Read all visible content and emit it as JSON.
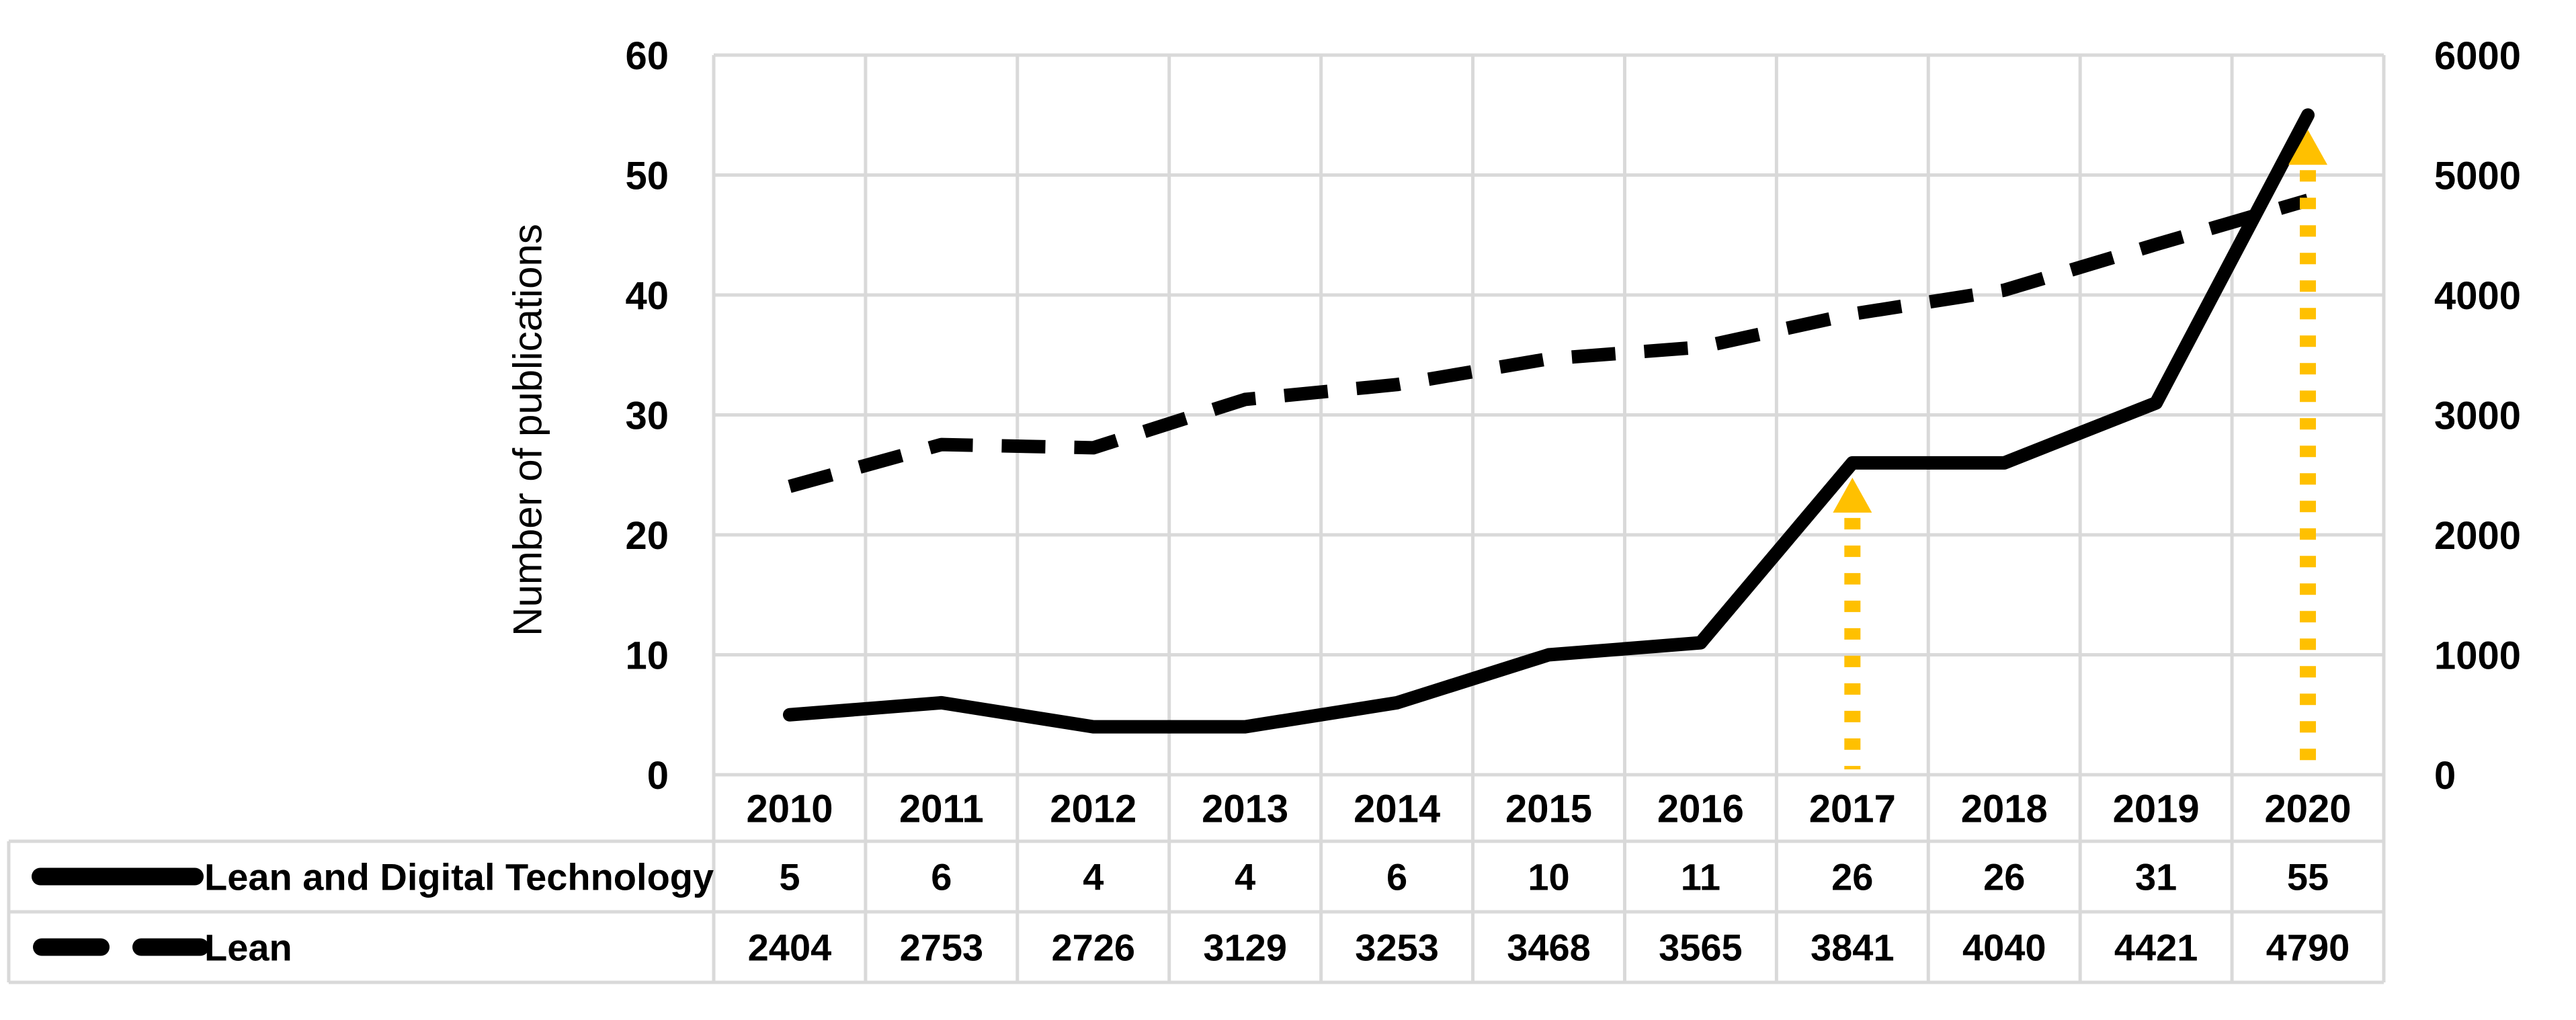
{
  "chart": {
    "y_axis_title": "Number of publications",
    "left_axis_ticks": [
      "0",
      "10",
      "20",
      "30",
      "40",
      "50",
      "60"
    ],
    "right_axis_ticks": [
      "0",
      "1000",
      "2000",
      "3000",
      "4000",
      "5000",
      "6000"
    ]
  },
  "chart_data": {
    "type": "line",
    "title": "",
    "xlabel": "",
    "ylabel": "Number of publications",
    "categories": [
      "2010",
      "2011",
      "2012",
      "2013",
      "2014",
      "2015",
      "2016",
      "2017",
      "2018",
      "2019",
      "2020"
    ],
    "series": [
      {
        "name": "Lean and Digital Technology",
        "axis": "left",
        "line_style": "solid",
        "color": "#000000",
        "values": [
          5,
          6,
          4,
          4,
          6,
          10,
          11,
          26,
          26,
          31,
          55
        ]
      },
      {
        "name": "Lean",
        "axis": "right",
        "line_style": "dashed",
        "color": "#000000",
        "values": [
          2404,
          2753,
          2726,
          3129,
          3253,
          3468,
          3565,
          3841,
          4040,
          4421,
          4790
        ]
      }
    ],
    "left_ylim": [
      0,
      60
    ],
    "right_ylim": [
      0,
      6000
    ],
    "grid": true,
    "gridline_color": "#d9d9d9",
    "annotation_arrows": {
      "color": "#FFC000",
      "categories": [
        "2017",
        "2020"
      ]
    },
    "legend_position": "data-table-left"
  }
}
